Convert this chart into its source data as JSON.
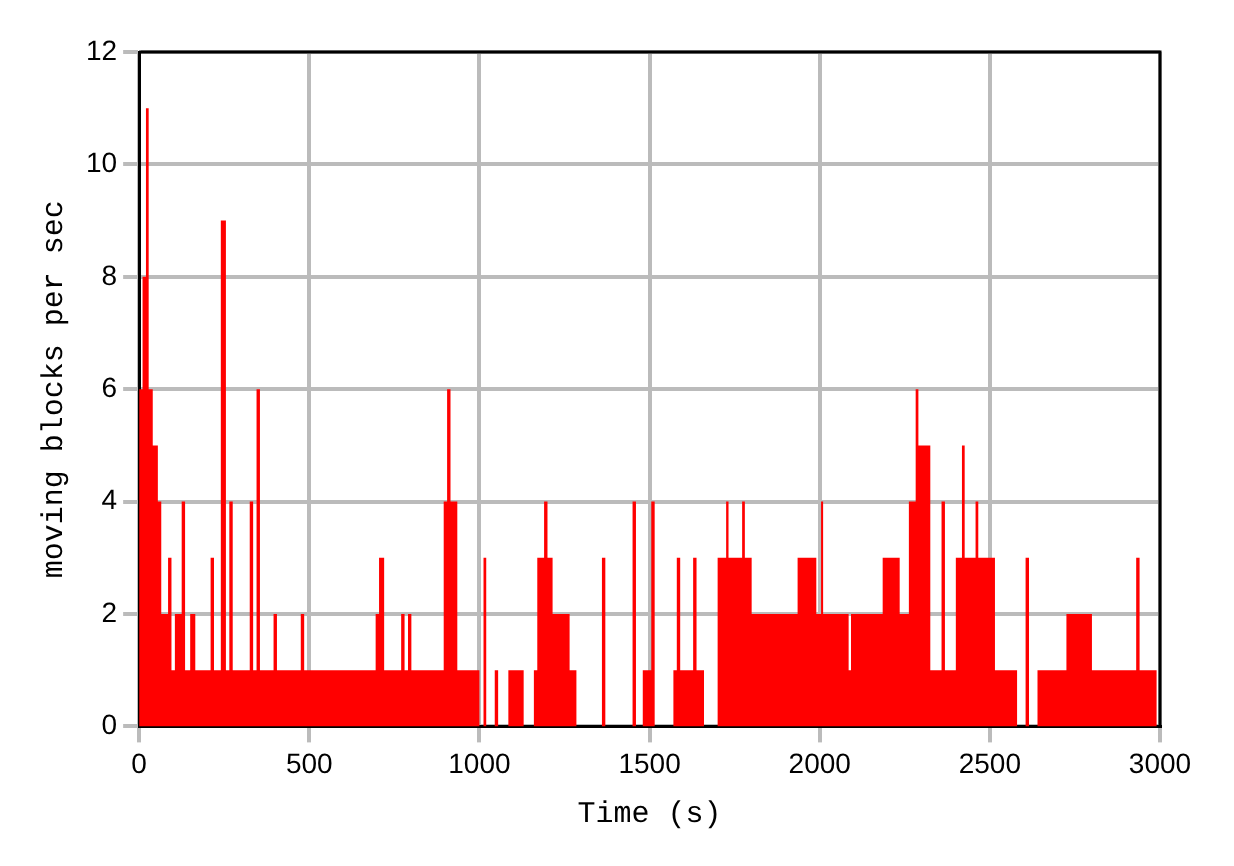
{
  "chart_data": {
    "type": "area",
    "xlabel": "Time (s)",
    "ylabel": "moving blocks per sec",
    "x": [
      0,
      10,
      20,
      28,
      40,
      55,
      65,
      85,
      95,
      105,
      125,
      135,
      150,
      165,
      210,
      220,
      240,
      255,
      265,
      275,
      325,
      335,
      345,
      355,
      395,
      405,
      475,
      485,
      695,
      705,
      720,
      770,
      780,
      790,
      800,
      895,
      905,
      915,
      935,
      1000,
      1012,
      1020,
      1045,
      1055,
      1085,
      1130,
      1160,
      1170,
      1190,
      1200,
      1215,
      1265,
      1285,
      1360,
      1370,
      1450,
      1460,
      1480,
      1505,
      1515,
      1570,
      1580,
      1590,
      1628,
      1638,
      1660,
      1700,
      1725,
      1732,
      1772,
      1780,
      1800,
      1935,
      1990,
      2004,
      2010,
      2085,
      2092,
      2185,
      2235,
      2262,
      2282,
      2290,
      2325,
      2358,
      2368,
      2400,
      2418,
      2426,
      2458,
      2466,
      2515,
      2580,
      2605,
      2615,
      2640,
      2725,
      2800,
      2930,
      2940,
      2990,
      3000
    ],
    "series": [
      {
        "color": "#ff0000",
        "values": [
          6,
          8,
          11,
          6,
          5,
          4,
          2,
          3,
          1,
          2,
          4,
          1,
          2,
          1,
          3,
          1,
          9,
          1,
          4,
          1,
          4,
          1,
          6,
          1,
          2,
          1,
          2,
          1,
          2,
          3,
          1,
          2,
          1,
          2,
          1,
          4,
          6,
          4,
          1,
          0,
          3,
          0,
          1,
          0,
          1,
          0,
          1,
          3,
          4,
          3,
          2,
          1,
          0,
          3,
          0,
          4,
          0,
          1,
          4,
          0,
          1,
          3,
          1,
          3,
          1,
          0,
          3,
          4,
          3,
          4,
          3,
          2,
          3,
          2,
          4,
          2,
          1,
          2,
          3,
          2,
          4,
          6,
          5,
          1,
          4,
          1,
          3,
          5,
          3,
          4,
          3,
          1,
          0,
          3,
          0,
          1,
          2,
          1,
          3,
          1,
          0,
          0
        ]
      }
    ],
    "xlim": [
      0,
      3000
    ],
    "xticks": [
      0,
      500,
      1000,
      1500,
      2000,
      2500,
      3000
    ],
    "ylim": [
      0,
      12
    ],
    "yticks": [
      0,
      2,
      4,
      6,
      8,
      10,
      12
    ],
    "grid": true
  }
}
